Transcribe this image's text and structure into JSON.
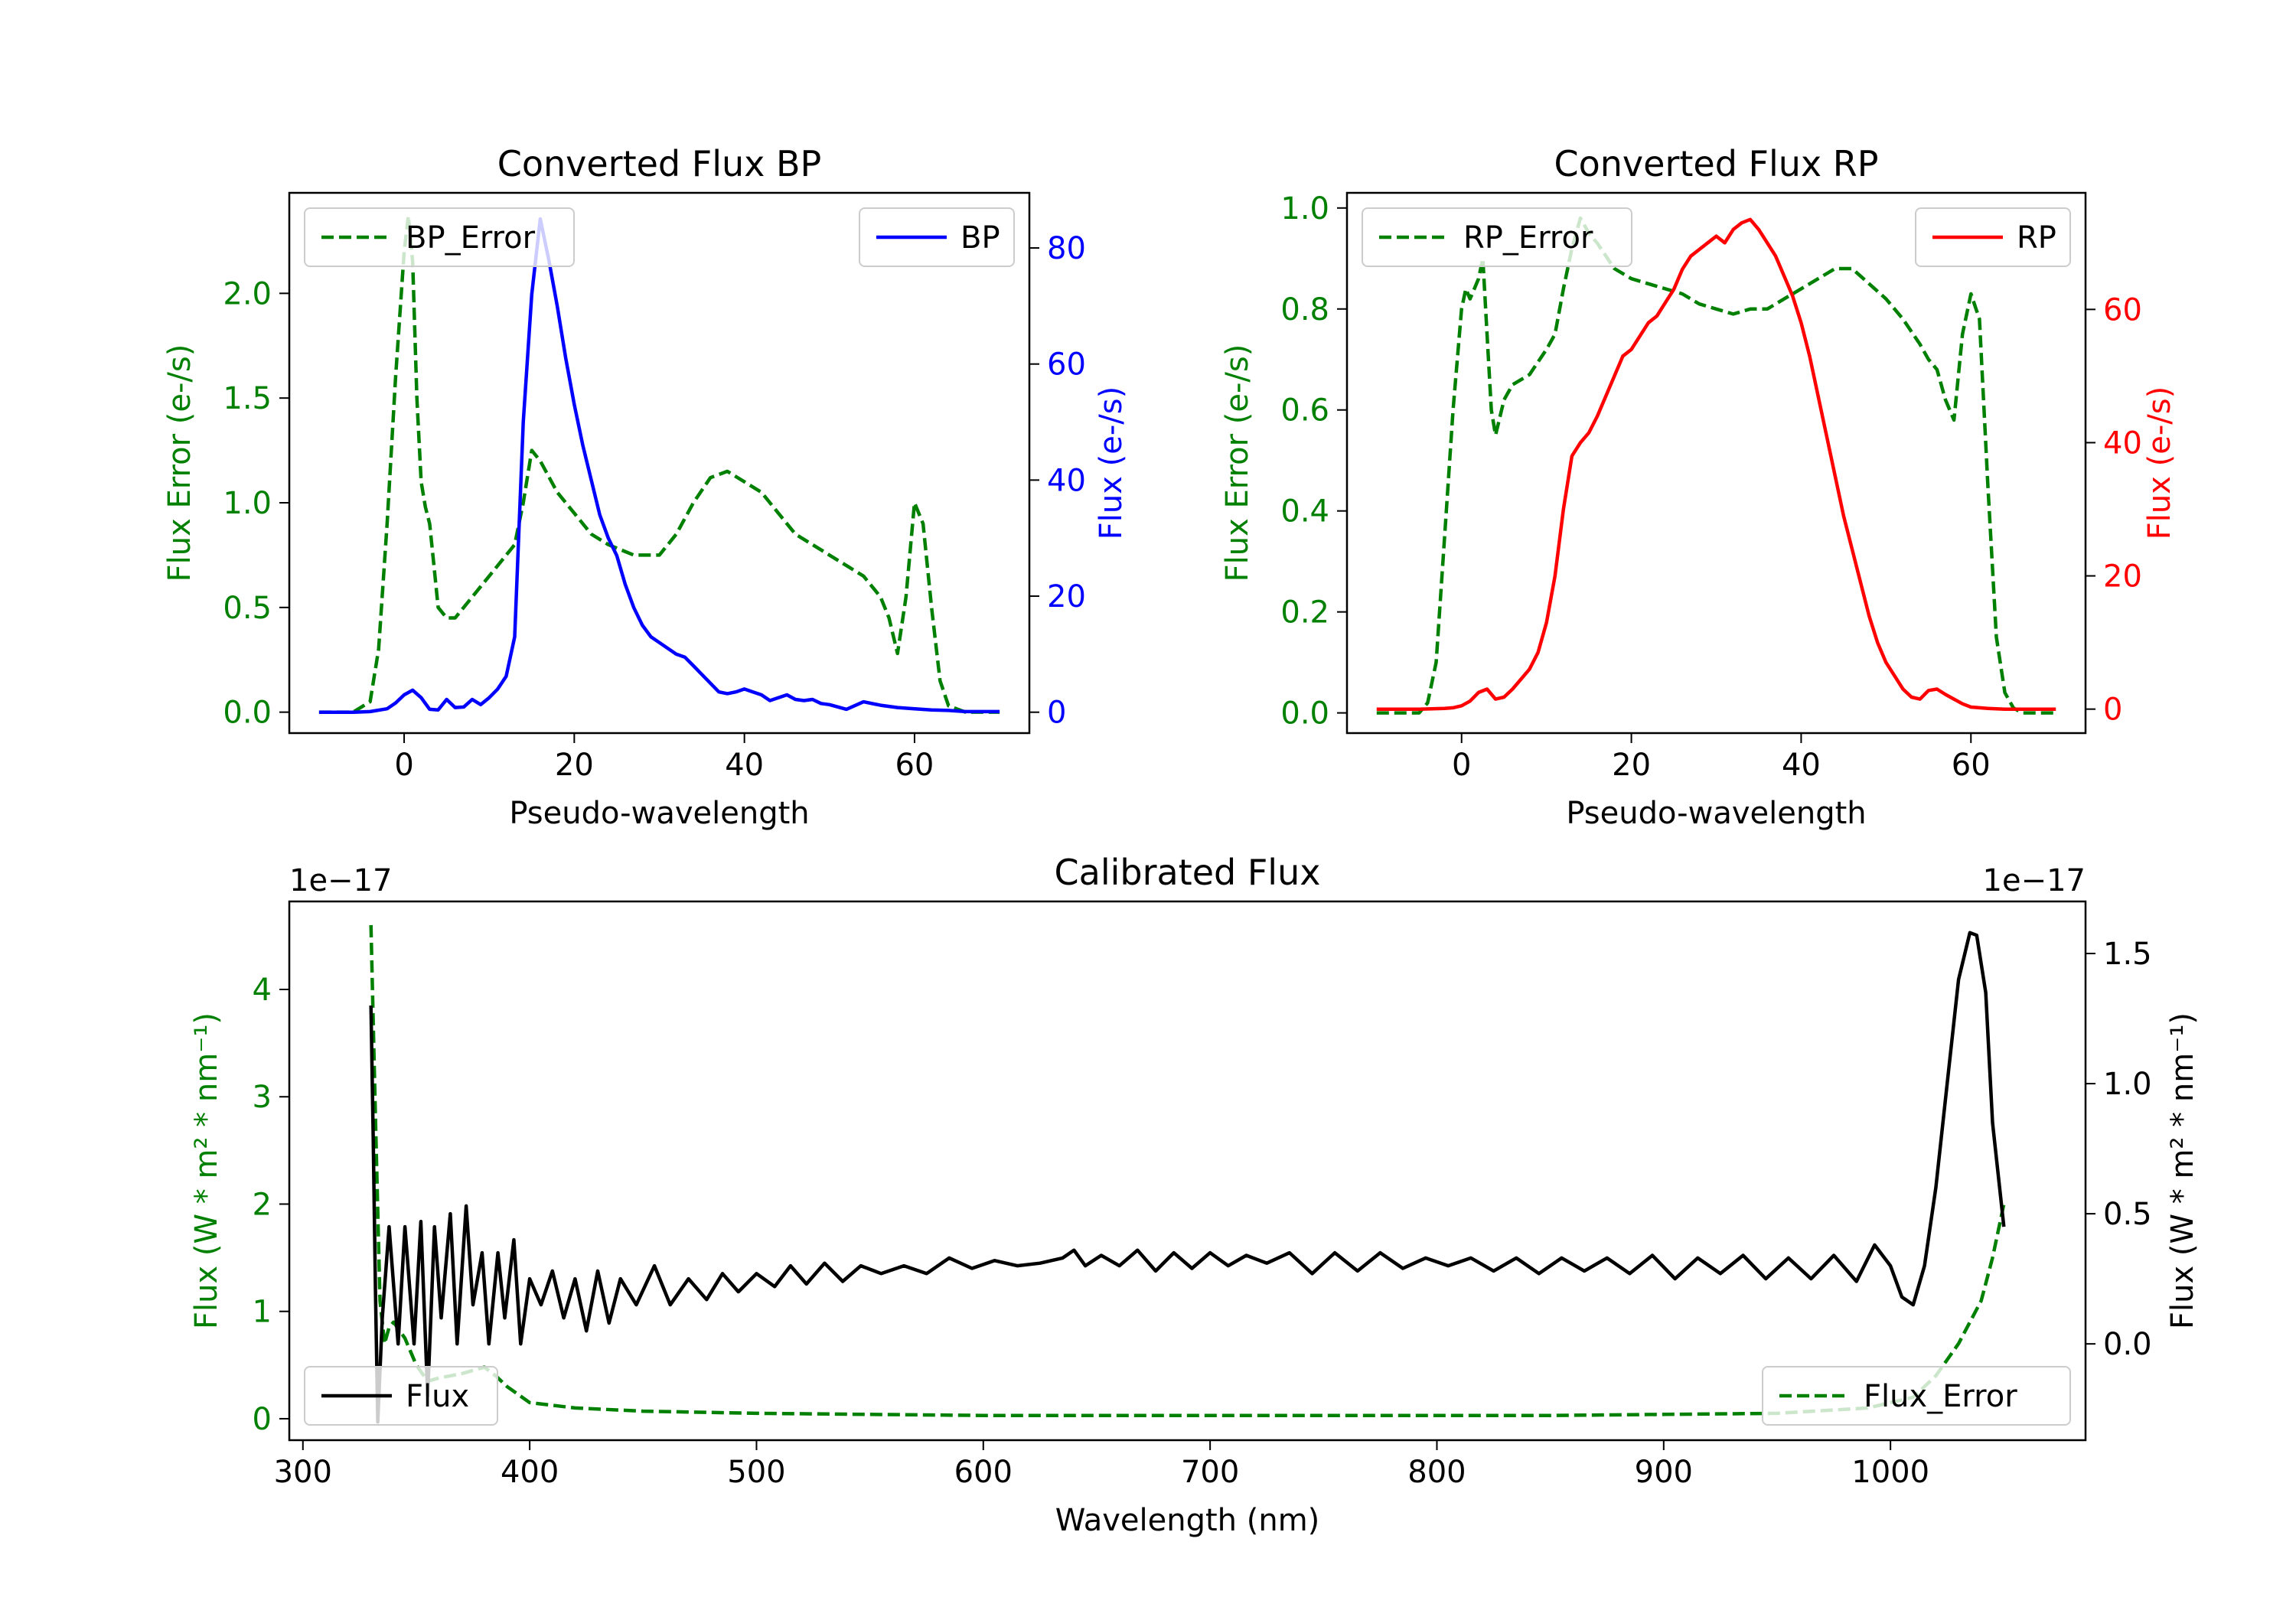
{
  "chart_data": [
    {
      "type": "line",
      "id": "bp",
      "title": "Converted Flux BP",
      "xlabel": "Pseudo-wavelength",
      "xlim": [
        -13.5,
        73.5
      ],
      "xticks": [
        0,
        20,
        40,
        60
      ],
      "left_axis": {
        "label": "Flux Error (e-/s)",
        "color": "#008000",
        "ylim": [
          -0.1,
          2.48
        ],
        "ticks": [
          0.0,
          0.5,
          1.0,
          1.5,
          2.0
        ],
        "tick_labels": [
          "0.0",
          "0.5",
          "1.0",
          "1.5",
          "2.0"
        ]
      },
      "right_axis": {
        "label": "Flux (e-/s)",
        "color": "#0000ff",
        "ylim": [
          -3.6,
          89.5
        ],
        "ticks": [
          0,
          20,
          40,
          60,
          80
        ],
        "tick_labels": [
          "0",
          "20",
          "40",
          "60",
          "80"
        ]
      },
      "series": [
        {
          "name": "BP_Error",
          "axis": "left",
          "style": "dashed",
          "color": "#008000",
          "x": [
            -10,
            -6,
            -4,
            -3,
            -2,
            -1,
            0,
            0.5,
            1,
            1.5,
            2,
            2.5,
            3,
            3.5,
            4,
            5,
            6,
            8,
            10,
            12,
            13,
            14,
            15,
            16,
            18,
            20,
            22,
            24,
            27,
            30,
            32,
            34,
            36,
            38,
            40,
            42,
            44,
            46,
            48,
            50,
            52,
            54,
            56,
            57,
            58,
            59,
            60,
            61,
            62,
            63,
            64,
            66,
            70
          ],
          "values": [
            0.0,
            0.0,
            0.05,
            0.3,
            0.9,
            1.6,
            2.2,
            2.37,
            2.15,
            1.5,
            1.1,
            0.98,
            0.9,
            0.7,
            0.5,
            0.45,
            0.45,
            0.55,
            0.65,
            0.75,
            0.8,
            1.0,
            1.25,
            1.2,
            1.05,
            0.95,
            0.85,
            0.8,
            0.75,
            0.75,
            0.85,
            1.0,
            1.12,
            1.15,
            1.1,
            1.05,
            0.95,
            0.85,
            0.8,
            0.75,
            0.7,
            0.65,
            0.55,
            0.45,
            0.28,
            0.55,
            1.0,
            0.9,
            0.5,
            0.15,
            0.03,
            0.0,
            0.0
          ]
        },
        {
          "name": "BP",
          "axis": "right",
          "style": "solid",
          "color": "#0000ff",
          "x": [
            -10,
            -6,
            -4,
            -2,
            -1,
            0,
            1,
            2,
            3,
            4,
            5,
            6,
            7,
            8,
            9,
            10,
            11,
            12,
            13,
            14,
            15,
            16,
            17,
            18,
            19,
            20,
            21,
            22,
            23,
            24,
            25,
            26,
            27,
            28,
            29,
            30,
            31,
            32,
            33,
            34,
            35,
            36,
            37,
            38,
            39,
            40,
            41,
            42,
            43,
            44,
            45,
            46,
            47,
            48,
            49,
            50,
            52,
            54,
            56,
            58,
            60,
            62,
            64,
            66,
            70
          ],
          "values": [
            0,
            0,
            0.1,
            0.6,
            1.6,
            3.0,
            3.8,
            2.5,
            0.5,
            0.4,
            2.2,
            0.8,
            0.9,
            2.2,
            1.3,
            2.5,
            4.0,
            6.2,
            13.0,
            50.0,
            72.0,
            85.0,
            78.0,
            70.0,
            61.0,
            53.0,
            46.0,
            40.0,
            34.0,
            30.0,
            27.0,
            22.0,
            18.0,
            15.0,
            13.0,
            12.0,
            11.0,
            10.0,
            9.5,
            8.0,
            6.5,
            5.0,
            3.5,
            3.2,
            3.5,
            4.0,
            3.5,
            3.0,
            2.0,
            2.5,
            3.0,
            2.2,
            2.0,
            2.2,
            1.5,
            1.3,
            0.5,
            1.8,
            1.2,
            0.8,
            0.6,
            0.4,
            0.3,
            0.1,
            0.1
          ]
        }
      ],
      "legends": [
        {
          "position": "upper left",
          "entries": [
            "BP_Error"
          ]
        },
        {
          "position": "upper right",
          "entries": [
            "BP"
          ]
        }
      ]
    },
    {
      "type": "line",
      "id": "rp",
      "title": "Converted Flux RP",
      "xlabel": "Pseudo-wavelength",
      "xlim": [
        -13.5,
        73.5
      ],
      "xticks": [
        0,
        20,
        40,
        60
      ],
      "left_axis": {
        "label": "Flux Error (e-/s)",
        "color": "#008000",
        "ylim": [
          -0.04,
          1.03
        ],
        "ticks": [
          0.0,
          0.2,
          0.4,
          0.6,
          0.8,
          1.0
        ],
        "tick_labels": [
          "0.0",
          "0.2",
          "0.4",
          "0.6",
          "0.8",
          "1.0"
        ]
      },
      "right_axis": {
        "label": "Flux (e-/s)",
        "color": "#ff0000",
        "ylim": [
          -3.6,
          77.5
        ],
        "ticks": [
          0,
          20,
          40,
          60
        ],
        "tick_labels": [
          "0",
          "20",
          "40",
          "60"
        ]
      },
      "series": [
        {
          "name": "RP_Error",
          "axis": "left",
          "style": "dashed",
          "color": "#008000",
          "x": [
            -10,
            -5,
            -4,
            -3,
            -2,
            -1,
            0,
            0.5,
            1,
            1.5,
            2,
            2.5,
            3,
            3.5,
            4,
            5,
            6,
            8,
            10,
            11,
            12,
            13,
            14,
            15,
            16,
            18,
            20,
            22,
            24,
            26,
            28,
            30,
            32,
            34,
            36,
            38,
            40,
            42,
            44,
            46,
            48,
            50,
            52,
            54,
            55,
            56,
            57,
            58,
            59,
            60,
            61,
            62,
            63,
            64,
            65,
            66,
            70
          ],
          "values": [
            0.0,
            0.0,
            0.02,
            0.1,
            0.35,
            0.6,
            0.8,
            0.84,
            0.82,
            0.84,
            0.86,
            0.9,
            0.75,
            0.6,
            0.55,
            0.62,
            0.65,
            0.67,
            0.72,
            0.75,
            0.84,
            0.92,
            0.98,
            0.95,
            0.93,
            0.88,
            0.86,
            0.85,
            0.84,
            0.83,
            0.81,
            0.8,
            0.79,
            0.8,
            0.8,
            0.82,
            0.84,
            0.86,
            0.88,
            0.88,
            0.85,
            0.82,
            0.78,
            0.73,
            0.7,
            0.68,
            0.62,
            0.58,
            0.75,
            0.83,
            0.78,
            0.45,
            0.15,
            0.04,
            0.01,
            0.0,
            0.0
          ]
        },
        {
          "name": "RP",
          "axis": "right",
          "style": "solid",
          "color": "#ff0000",
          "x": [
            -10,
            -5,
            -2,
            -1,
            0,
            1,
            2,
            3,
            4,
            5,
            6,
            7,
            8,
            9,
            10,
            11,
            12,
            13,
            14,
            15,
            16,
            17,
            18,
            19,
            20,
            21,
            22,
            23,
            24,
            25,
            26,
            27,
            28,
            29,
            30,
            31,
            32,
            33,
            34,
            35,
            36,
            37,
            38,
            39,
            40,
            41,
            42,
            43,
            44,
            45,
            46,
            47,
            48,
            49,
            50,
            51,
            52,
            53,
            54,
            55,
            56,
            57,
            58,
            59,
            60,
            62,
            64,
            66,
            70
          ],
          "values": [
            0,
            0,
            0.1,
            0.2,
            0.5,
            1.2,
            2.5,
            3.0,
            1.5,
            1.8,
            3.0,
            4.5,
            6.0,
            8.5,
            13.0,
            20.0,
            30.0,
            38.0,
            40.0,
            41.5,
            44.0,
            47.0,
            50.0,
            53.0,
            54.0,
            56.0,
            58.0,
            59.0,
            61.0,
            63.0,
            66.0,
            68.0,
            69.0,
            70.0,
            71.0,
            70.0,
            72.0,
            73.0,
            73.5,
            72.0,
            70.0,
            68.0,
            65.0,
            62.0,
            58.0,
            53.0,
            47.0,
            41.0,
            35.0,
            29.0,
            24.0,
            19.0,
            14.0,
            10.0,
            7.0,
            5.0,
            3.0,
            1.8,
            1.5,
            2.8,
            3.0,
            2.2,
            1.5,
            0.8,
            0.3,
            0.1,
            0.0,
            0.0,
            0.0
          ]
        }
      ],
      "legends": [
        {
          "position": "upper left",
          "entries": [
            "RP_Error"
          ]
        },
        {
          "position": "upper right",
          "entries": [
            "RP"
          ]
        }
      ]
    },
    {
      "type": "line",
      "id": "cal",
      "title": "Calibrated Flux",
      "xlabel": "Wavelength (nm)",
      "xlim": [
        294,
        1086
      ],
      "xticks": [
        300,
        400,
        500,
        600,
        700,
        800,
        900,
        1000
      ],
      "left_axis": {
        "label": "Flux (W * m² * nm⁻¹)",
        "color": "#008000",
        "ylim": [
          -0.2,
          4.82
        ],
        "ticks": [
          0,
          1,
          2,
          3,
          4
        ],
        "tick_labels": [
          "0",
          "1",
          "2",
          "3",
          "4"
        ],
        "offset_text": "1e−17"
      },
      "right_axis": {
        "label": "Flux (W * m² * nm⁻¹)",
        "color": "#000000",
        "ylim": [
          -0.37,
          1.7
        ],
        "ticks": [
          0.0,
          0.5,
          1.0,
          1.5
        ],
        "tick_labels": [
          "0.0",
          "0.5",
          "1.0",
          "1.5"
        ],
        "offset_text": "1e−17"
      },
      "series": [
        {
          "name": "Flux_Error",
          "axis": "left",
          "style": "dashed",
          "color": "#008000",
          "x": [
            330,
            332,
            334,
            336,
            338,
            340,
            345,
            350,
            355,
            360,
            365,
            370,
            375,
            380,
            385,
            390,
            400,
            420,
            450,
            500,
            550,
            600,
            650,
            700,
            750,
            800,
            850,
            900,
            950,
            990,
            1010,
            1020,
            1030,
            1040,
            1045,
            1050
          ],
          "values": [
            4.6,
            2.8,
            1.1,
            0.7,
            0.85,
            0.9,
            0.75,
            0.5,
            0.35,
            0.38,
            0.4,
            0.42,
            0.45,
            0.48,
            0.4,
            0.3,
            0.15,
            0.1,
            0.07,
            0.05,
            0.04,
            0.03,
            0.03,
            0.03,
            0.03,
            0.03,
            0.03,
            0.04,
            0.05,
            0.1,
            0.2,
            0.4,
            0.7,
            1.1,
            1.5,
            2.0
          ]
        },
        {
          "name": "Flux",
          "axis": "right",
          "style": "solid",
          "color": "#000000",
          "x": [
            330,
            331,
            332,
            333,
            335,
            338,
            342,
            345,
            349,
            352,
            355,
            358,
            361,
            365,
            368,
            372,
            375,
            379,
            382,
            386,
            389,
            393,
            396,
            400,
            405,
            410,
            415,
            420,
            425,
            430,
            435,
            440,
            447,
            455,
            462,
            470,
            478,
            485,
            492,
            500,
            508,
            515,
            522,
            530,
            538,
            546,
            555,
            565,
            575,
            585,
            595,
            605,
            615,
            625,
            635,
            640,
            645,
            652,
            660,
            668,
            676,
            684,
            692,
            700,
            708,
            716,
            725,
            735,
            745,
            755,
            765,
            775,
            785,
            795,
            805,
            815,
            825,
            835,
            845,
            855,
            865,
            875,
            885,
            895,
            905,
            915,
            925,
            935,
            945,
            955,
            965,
            975,
            985,
            993,
            1000,
            1005,
            1010,
            1015,
            1020,
            1025,
            1030,
            1035,
            1038,
            1042,
            1045,
            1050
          ],
          "values": [
            1.3,
            0.8,
            0.2,
            -0.3,
            0.1,
            0.45,
            0.0,
            0.45,
            0.0,
            0.47,
            -0.2,
            0.45,
            0.1,
            0.5,
            0.0,
            0.53,
            0.15,
            0.35,
            0.0,
            0.35,
            0.1,
            0.4,
            0.0,
            0.25,
            0.15,
            0.28,
            0.1,
            0.25,
            0.05,
            0.28,
            0.08,
            0.25,
            0.15,
            0.3,
            0.15,
            0.25,
            0.17,
            0.27,
            0.2,
            0.27,
            0.22,
            0.3,
            0.23,
            0.31,
            0.24,
            0.3,
            0.27,
            0.3,
            0.27,
            0.33,
            0.29,
            0.32,
            0.3,
            0.31,
            0.33,
            0.36,
            0.3,
            0.34,
            0.3,
            0.36,
            0.28,
            0.35,
            0.29,
            0.35,
            0.3,
            0.34,
            0.31,
            0.35,
            0.27,
            0.35,
            0.28,
            0.35,
            0.29,
            0.33,
            0.3,
            0.33,
            0.28,
            0.33,
            0.27,
            0.33,
            0.28,
            0.33,
            0.27,
            0.34,
            0.25,
            0.33,
            0.27,
            0.34,
            0.25,
            0.33,
            0.25,
            0.34,
            0.24,
            0.38,
            0.3,
            0.18,
            0.15,
            0.3,
            0.6,
            1.0,
            1.4,
            1.58,
            1.57,
            1.35,
            0.85,
            0.45
          ]
        }
      ],
      "legends": [
        {
          "position": "lower left",
          "entries": [
            "Flux"
          ]
        },
        {
          "position": "lower right",
          "entries": [
            "Flux_Error"
          ]
        }
      ]
    }
  ]
}
